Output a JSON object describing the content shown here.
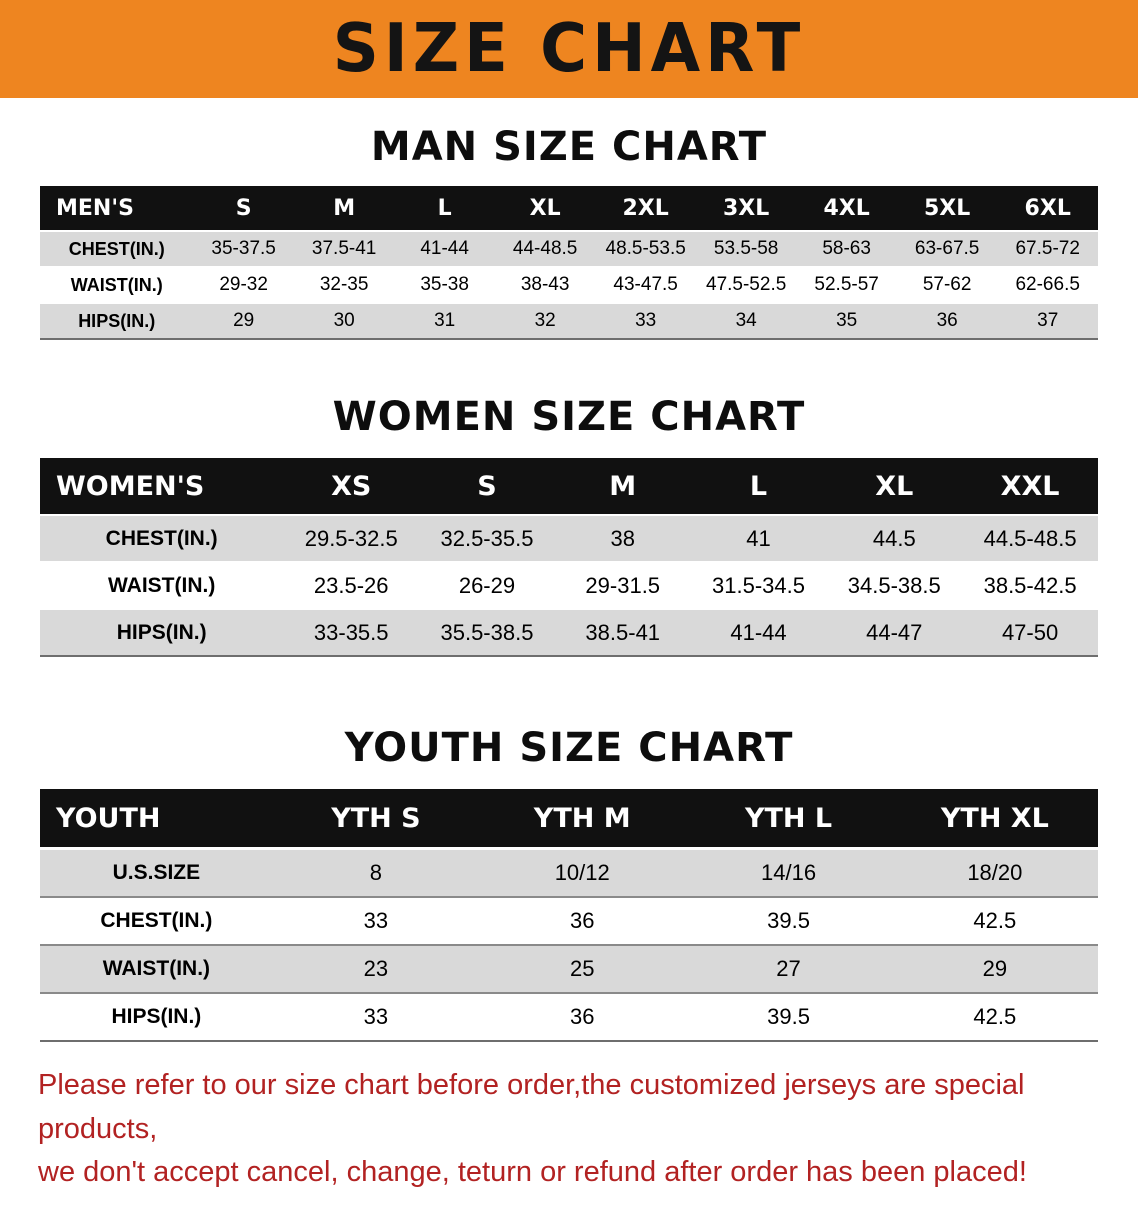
{
  "banner": {
    "title": "SIZE CHART",
    "bg_color": "#ee8520"
  },
  "chart_data": [
    {
      "type": "table",
      "id": "men",
      "title": "MAN SIZE CHART",
      "columns": [
        "MEN'S",
        "S",
        "M",
        "L",
        "XL",
        "2XL",
        "3XL",
        "4XL",
        "5XL",
        "6XL"
      ],
      "rows": [
        [
          "CHEST(IN.)",
          "35-37.5",
          "37.5-41",
          "41-44",
          "44-48.5",
          "48.5-53.5",
          "53.5-58",
          "58-63",
          "63-67.5",
          "67.5-72"
        ],
        [
          "WAIST(IN.)",
          "29-32",
          "32-35",
          "35-38",
          "38-43",
          "43-47.5",
          "47.5-52.5",
          "52.5-57",
          "57-62",
          "62-66.5"
        ],
        [
          "HIPS(IN.)",
          "29",
          "30",
          "31",
          "32",
          "33",
          "34",
          "35",
          "36",
          "37"
        ]
      ]
    },
    {
      "type": "table",
      "id": "women",
      "title": "WOMEN SIZE CHART",
      "columns": [
        "WOMEN'S",
        "XS",
        "S",
        "M",
        "L",
        "XL",
        "XXL"
      ],
      "rows": [
        [
          "CHEST(IN.)",
          "29.5-32.5",
          "32.5-35.5",
          "38",
          "41",
          "44.5",
          "44.5-48.5"
        ],
        [
          "WAIST(IN.)",
          "23.5-26",
          "26-29",
          "29-31.5",
          "31.5-34.5",
          "34.5-38.5",
          "38.5-42.5"
        ],
        [
          "HIPS(IN.)",
          "33-35.5",
          "35.5-38.5",
          "38.5-41",
          "41-44",
          "44-47",
          "47-50"
        ]
      ]
    },
    {
      "type": "table",
      "id": "youth",
      "title": "YOUTH SIZE CHART",
      "columns": [
        "YOUTH",
        "YTH S",
        "YTH M",
        "YTH L",
        "YTH XL"
      ],
      "rows": [
        [
          "U.S.SIZE",
          "8",
          "10/12",
          "14/16",
          "18/20"
        ],
        [
          "CHEST(IN.)",
          "33",
          "36",
          "39.5",
          "42.5"
        ],
        [
          "WAIST(IN.)",
          "23",
          "25",
          "27",
          "29"
        ],
        [
          "HIPS(IN.)",
          "33",
          "36",
          "39.5",
          "42.5"
        ]
      ]
    }
  ],
  "table_style": {
    "header_bg": "#111111",
    "header_text": "#ffffff",
    "stripe_bg": "#d9d9d9"
  },
  "disclaimer": {
    "line1": "Please refer to our size chart before order,the customized jerseys are special products,",
    "line2": "we don't accept cancel, change, teturn or refund after order has been placed!",
    "color": "#b22222"
  }
}
